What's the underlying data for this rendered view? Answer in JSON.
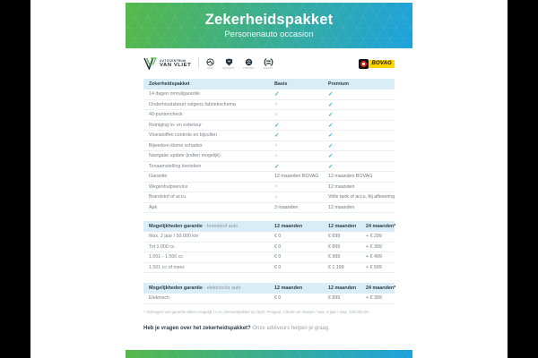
{
  "colors": {
    "gradient_green": "#55b848",
    "gradient_blue": "#1da2de",
    "check": "#2bb4da",
    "cross": "#c7ccd1",
    "table_header_bg": "#d9edf7"
  },
  "hero": {
    "title": "Zekerheidspakket",
    "subtitle": "Personenauto occasion"
  },
  "branding": {
    "dealer_line1": "AUTOCENTRUM",
    "dealer_line2": "VAN VLIET",
    "brands": [
      {
        "name": "Opel"
      },
      {
        "name": "Peugeot"
      },
      {
        "name": "Citroën"
      },
      {
        "name": "Aiways"
      }
    ],
    "bovag_label": "BOVAG"
  },
  "package_table": {
    "header_title": "Zekerheidspakket",
    "cols": [
      "Basis",
      "Premium"
    ],
    "rows": [
      {
        "label": "14 dagen omruilgarantie",
        "cells": [
          "check",
          "check"
        ]
      },
      {
        "label": "Onderhoudsbeurt volgens fabriekschema",
        "cells": [
          "cross",
          "check"
        ]
      },
      {
        "label": "40-puntencheck",
        "cells": [
          "cross",
          "check"
        ]
      },
      {
        "label": "Reiniging in- en exterieur",
        "cells": [
          "check",
          "check"
        ]
      },
      {
        "label": "Vloeistoffen controle en bijvullen",
        "cells": [
          "check",
          "check"
        ]
      },
      {
        "label": "Bijwerken kleine schades",
        "cells": [
          "cross",
          "check"
        ]
      },
      {
        "label": "Navigatie update (indien mogelijk)",
        "cells": [
          "cross",
          "check"
        ]
      },
      {
        "label": "Tenaamstelling kenteken",
        "cells": [
          "check",
          "check"
        ]
      },
      {
        "label": "Garantie",
        "cells": [
          "12 maanden BOVAG",
          "12 maanden BOVAG"
        ]
      },
      {
        "label": "Wegenhulpservice",
        "cells": [
          "cross",
          "12 maanden"
        ]
      },
      {
        "label": "Brandstof of accu",
        "cells": [
          "cross",
          "Volle tank of accu, bij aflevering"
        ]
      },
      {
        "label": "Apk",
        "cells": [
          "3 maanden",
          "12 maanden"
        ]
      }
    ]
  },
  "fuel_table": {
    "header_title": "Mogelijkheden garantie",
    "header_subtitle": " - brandstof auto",
    "cols": [
      "12 maanden",
      "12 maanden",
      "24 maanden*"
    ],
    "rows": [
      {
        "label": "Max. 2 jaar / 50.000 km",
        "cells": [
          "€ 0",
          "€ 699",
          "+ € 299"
        ]
      },
      {
        "label": "Tot 1.000 cc",
        "cells": [
          "€ 0",
          "€ 899",
          "+ € 399"
        ]
      },
      {
        "label": "1.001 - 1.500 cc",
        "cells": [
          "€ 0",
          "€ 999",
          "+ € 499"
        ]
      },
      {
        "label": "1.501 cc of meer",
        "cells": [
          "€ 0",
          "€ 1.199",
          "+ € 599"
        ]
      }
    ]
  },
  "electric_table": {
    "header_title": "Mogelijkheden garantie",
    "header_subtitle": " - elektrische auto",
    "cols": [
      "12 maanden",
      "12 maanden",
      "24 maanden*"
    ],
    "rows": [
      {
        "label": "Elektrisch",
        "cells": [
          "€ 0",
          "€ 899",
          "+ € 399"
        ]
      }
    ]
  },
  "footnote": "* Verlengen van garantie alleen mogelijk i.c.m. premiumpakket op Opel, Peugeot, Citroën en Aiways / max. 8 jaar / max. 150.000 km.",
  "question": {
    "bold": "Heb je vragen over het zekerheidspakket?",
    "rest": " Onze adviseurs helpen je graag."
  }
}
